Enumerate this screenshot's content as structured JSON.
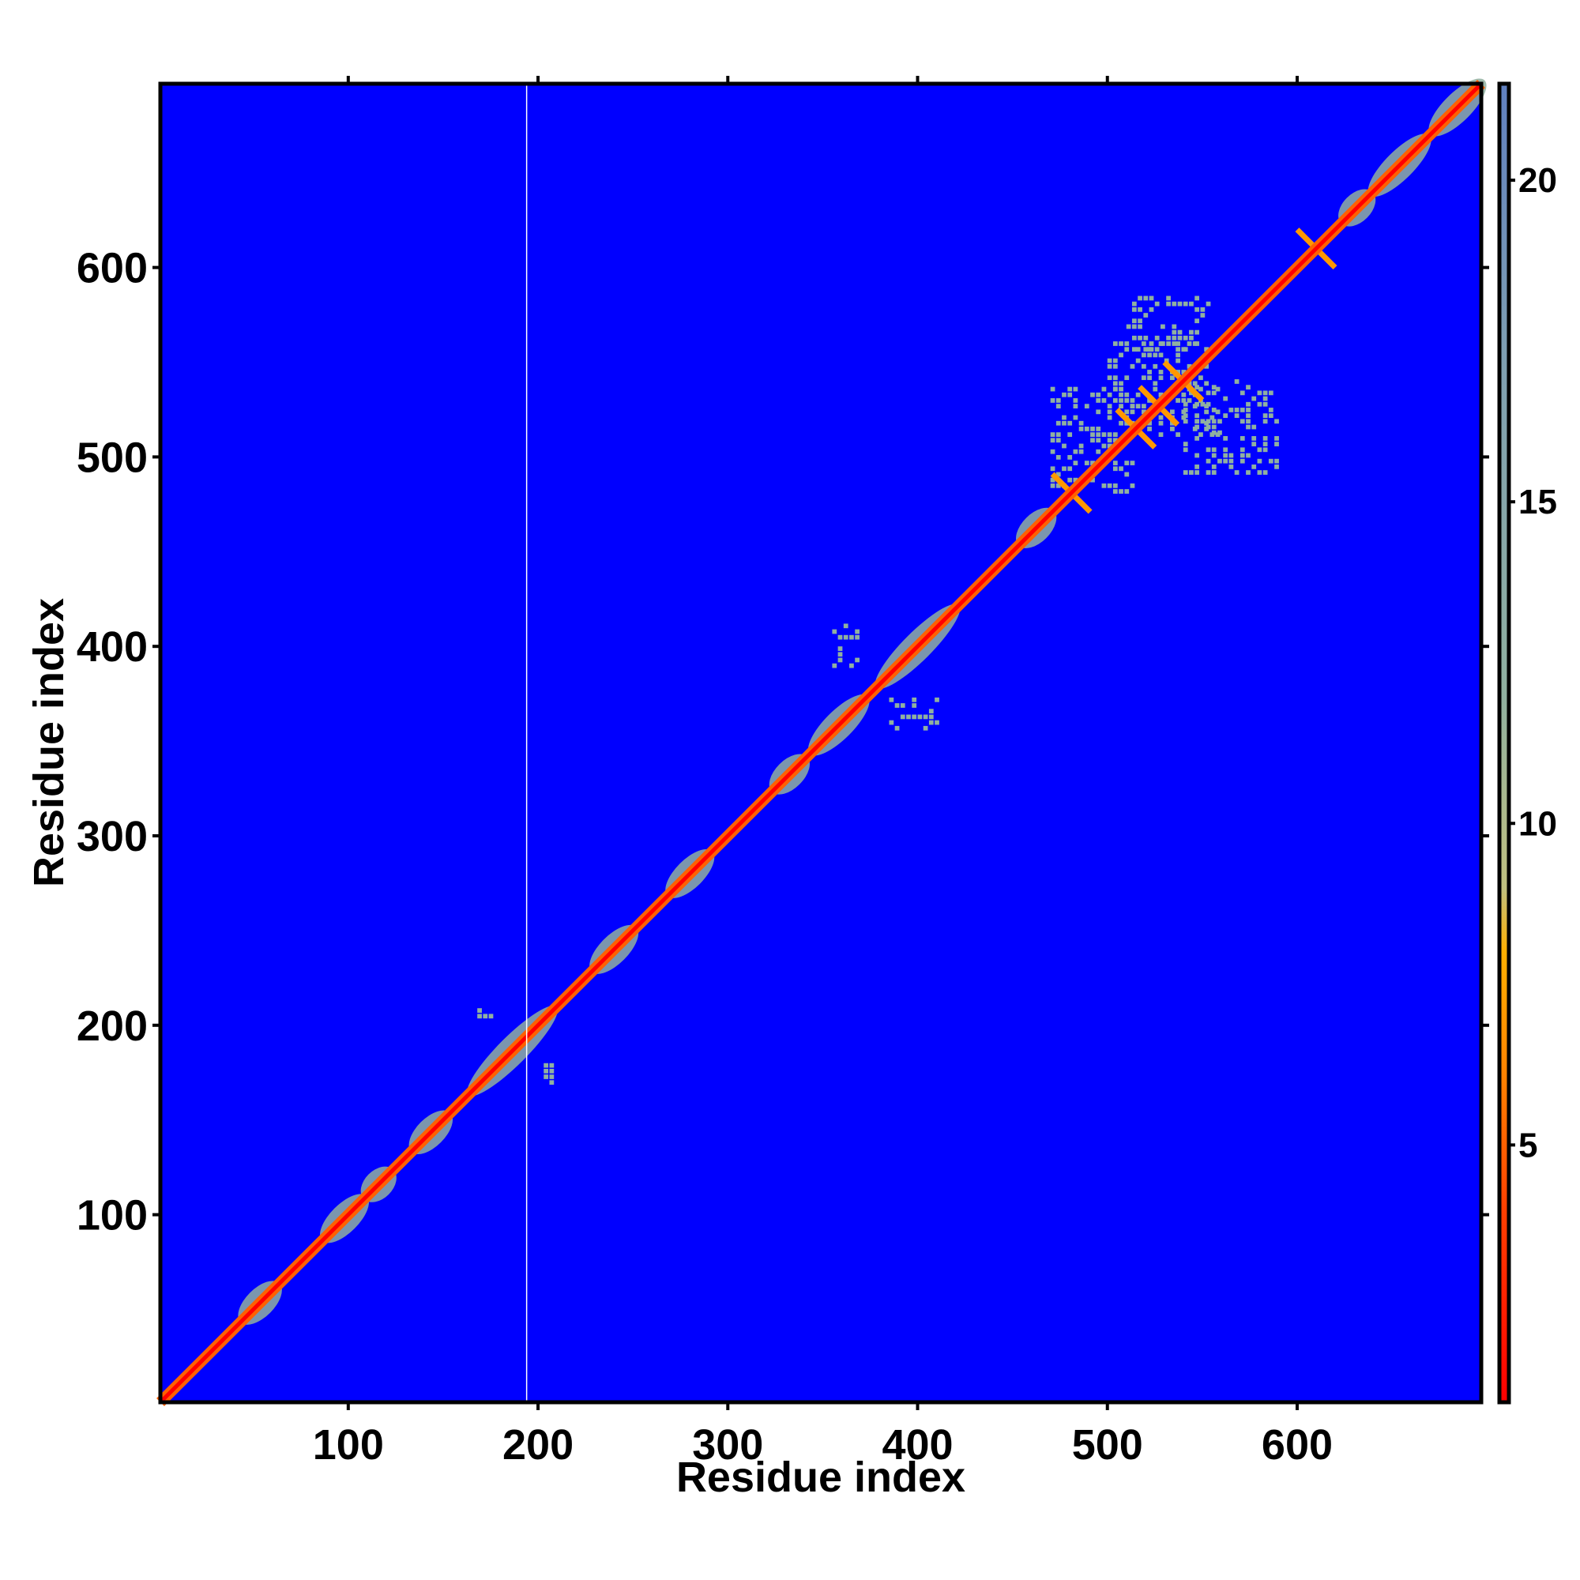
{
  "chart_data": {
    "type": "heatmap",
    "title": "",
    "xlabel": "Residue index",
    "ylabel": "Residue index",
    "xlim": [
      1,
      697
    ],
    "ylim": [
      1,
      697
    ],
    "xticks": [
      100,
      200,
      300,
      400,
      500,
      600
    ],
    "yticks": [
      100,
      200,
      300,
      400,
      500,
      600
    ],
    "gap_residue": 194,
    "colorbar": {
      "range": [
        1,
        21.5
      ],
      "ticks": [
        5,
        10,
        15,
        20
      ],
      "stops": [
        {
          "v": 1,
          "color": "#ff0000"
        },
        {
          "v": 4,
          "color": "#ff4000"
        },
        {
          "v": 6,
          "color": "#ff8000"
        },
        {
          "v": 8,
          "color": "#ffb000"
        },
        {
          "v": 9,
          "color": "#c0c080"
        },
        {
          "v": 12,
          "color": "#90b0a0"
        },
        {
          "v": 17,
          "color": "#80a0b0"
        },
        {
          "v": 21.5,
          "color": "#6080c0"
        }
      ]
    },
    "background_color": "#0000ff",
    "diagonal_domains": [
      {
        "start": 45,
        "end": 62,
        "value": 12
      },
      {
        "start": 88,
        "end": 108,
        "value": 12
      },
      {
        "start": 110,
        "end": 122,
        "value": 12
      },
      {
        "start": 135,
        "end": 152,
        "value": 12
      },
      {
        "start": 165,
        "end": 208,
        "value": 12
      },
      {
        "start": 230,
        "end": 250,
        "value": 12
      },
      {
        "start": 270,
        "end": 290,
        "value": 12
      },
      {
        "start": 325,
        "end": 340,
        "value": 12
      },
      {
        "start": 345,
        "end": 372,
        "value": 12
      },
      {
        "start": 380,
        "end": 420,
        "value": 12
      },
      {
        "start": 455,
        "end": 470,
        "value": 12
      },
      {
        "start": 625,
        "end": 638,
        "value": 12
      },
      {
        "start": 640,
        "end": 668,
        "value": 12
      },
      {
        "start": 672,
        "end": 697,
        "value": 12
      }
    ],
    "contact_patches": [
      {
        "x0": 355,
        "x1": 370,
        "y0": 388,
        "y1": 412,
        "value": 12
      },
      {
        "x0": 385,
        "x1": 410,
        "y0": 355,
        "y1": 372,
        "value": 12
      },
      {
        "x0": 470,
        "x1": 515,
        "y0": 480,
        "y1": 535,
        "value": 12
      },
      {
        "x0": 500,
        "x1": 560,
        "y0": 510,
        "y1": 560,
        "value": 12
      },
      {
        "x0": 510,
        "x1": 555,
        "y0": 555,
        "y1": 585,
        "value": 12
      },
      {
        "x0": 540,
        "x1": 590,
        "y0": 490,
        "y1": 540,
        "value": 12
      },
      {
        "x0": 168,
        "x1": 180,
        "y0": 203,
        "y1": 209,
        "value": 12
      },
      {
        "x0": 203,
        "x1": 209,
        "y0": 168,
        "y1": 180,
        "value": 12
      }
    ],
    "crosses": [
      {
        "c": 481,
        "value": 7
      },
      {
        "c": 515,
        "value": 7
      },
      {
        "c": 527,
        "value": 7
      },
      {
        "c": 540,
        "value": 7
      },
      {
        "c": 610,
        "value": 7
      }
    ]
  }
}
